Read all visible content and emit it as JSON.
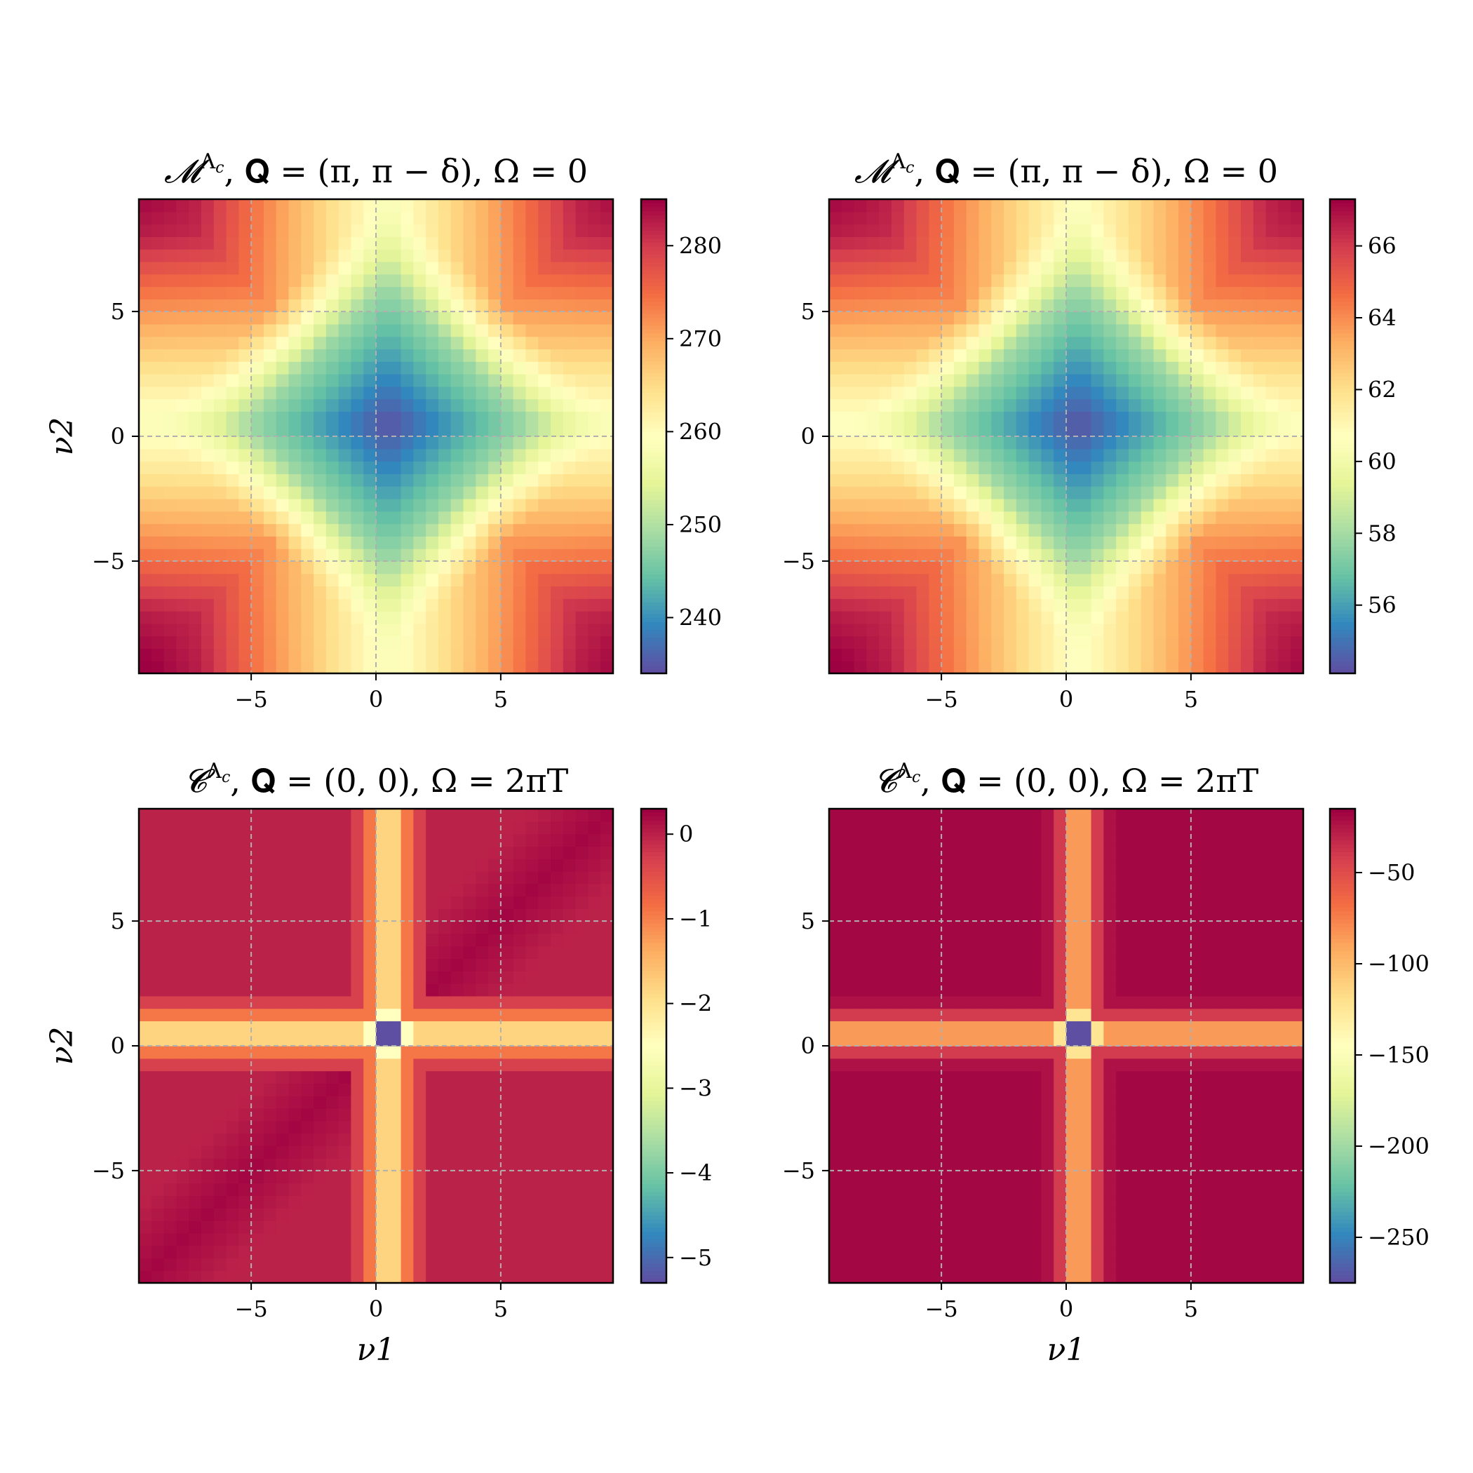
{
  "figure": {
    "colormap": "Spectral",
    "colormap_stops": [
      "#9e0142",
      "#d53e4f",
      "#f46d43",
      "#fdae61",
      "#fee08b",
      "#ffffbf",
      "#e6f598",
      "#abdda4",
      "#66c2a5",
      "#3288bd",
      "#5e4fa2"
    ]
  },
  "chart_data": [
    {
      "type": "heatmap",
      "title": "𝓜^Λc, 𝐐 = (π, π − δ), Ω = 0",
      "title_parts": {
        "sym": "𝓜",
        "sup": "Λ",
        "sub": "c",
        "rest": ", 𝐐 = (π, π − δ), Ω = 0"
      },
      "xlabel": "",
      "ylabel": "ν2",
      "xlim": [
        -9.5,
        9.5
      ],
      "ylim": [
        -9.5,
        9.5
      ],
      "xticks": [
        -5,
        0,
        5
      ],
      "yticks": [
        -5,
        0,
        5
      ],
      "xtick_labels": [
        "−5",
        "0",
        "5"
      ],
      "ytick_labels": [
        "−5",
        "0",
        "5"
      ],
      "grid": true,
      "grid_style": "dashed",
      "colorbar": {
        "min": 234,
        "max": 285,
        "ticks": [
          240,
          250,
          260,
          270,
          280
        ],
        "tick_labels": [
          "240",
          "250",
          "260",
          "270",
          "280"
        ]
      },
      "pattern": "cross",
      "center": [
        0.5,
        0.5
      ],
      "values": {
        "center": 234,
        "band_min": 258,
        "edge": 278,
        "corner": 285
      }
    },
    {
      "type": "heatmap",
      "title": "𝓜^Λc, 𝐐 = (π, π − δ), Ω = 0",
      "title_parts": {
        "sym": "𝓜",
        "sup": "Λ",
        "sub": "c",
        "rest": ", 𝐐 = (π, π − δ), Ω = 0"
      },
      "xlabel": "",
      "ylabel": "",
      "xlim": [
        -9.5,
        9.5
      ],
      "ylim": [
        -9.5,
        9.5
      ],
      "xticks": [
        -5,
        0,
        5
      ],
      "yticks": [
        -5,
        0,
        5
      ],
      "xtick_labels": [
        "−5",
        "0",
        "5"
      ],
      "ytick_labels": [
        "−5",
        "0",
        "5"
      ],
      "grid": true,
      "grid_style": "dashed",
      "colorbar": {
        "min": 54.1,
        "max": 67.3,
        "ticks": [
          56,
          58,
          60,
          62,
          64,
          66
        ],
        "tick_labels": [
          "56",
          "58",
          "60",
          "62",
          "64",
          "66"
        ]
      },
      "pattern": "cross",
      "center": [
        0.5,
        0.5
      ],
      "values": {
        "center": 54.1,
        "band_min": 60.5,
        "edge": 65.5,
        "corner": 67.3
      }
    },
    {
      "type": "heatmap",
      "title": "𝓒^Λc, 𝐐 = (0, 0), Ω = 2πT",
      "title_parts": {
        "sym": "𝓒",
        "sup": "Λ",
        "sub": "c",
        "rest": ", 𝐐 = (0, 0), Ω = 2πT"
      },
      "xlabel": "ν1",
      "ylabel": "ν2",
      "xlim": [
        -9.5,
        9.5
      ],
      "ylim": [
        -9.5,
        9.5
      ],
      "xticks": [
        -5,
        0,
        5
      ],
      "yticks": [
        -5,
        0,
        5
      ],
      "xtick_labels": [
        "−5",
        "0",
        "5"
      ],
      "ytick_labels": [
        "−5",
        "0",
        "5"
      ],
      "grid": true,
      "grid_style": "dashed",
      "colorbar": {
        "min": -5.3,
        "max": 0.3,
        "ticks": [
          -5,
          -4,
          -3,
          -2,
          -1,
          0
        ],
        "tick_labels": [
          "−5",
          "−4",
          "−3",
          "−2",
          "−1",
          "0"
        ]
      },
      "pattern": "lines",
      "line_pos": 0.5,
      "values": {
        "background": 0.0,
        "line_center": -1.8,
        "line_near": -0.9,
        "line_far": -0.3,
        "spot": -5.3,
        "diag_dip": 0.25
      }
    },
    {
      "type": "heatmap",
      "title": "𝓒^Λc, 𝐐 = (0, 0), Ω = 2πT",
      "title_parts": {
        "sym": "𝓒",
        "sup": "Λ",
        "sub": "c",
        "rest": ", 𝐐 = (0, 0), Ω = 2πT"
      },
      "xlabel": "ν1",
      "ylabel": "",
      "xlim": [
        -9.5,
        9.5
      ],
      "ylim": [
        -9.5,
        9.5
      ],
      "xticks": [
        -5,
        0,
        5
      ],
      "yticks": [
        -5,
        0,
        5
      ],
      "xtick_labels": [
        "−5",
        "0",
        "5"
      ],
      "ytick_labels": [
        "−5",
        "0",
        "5"
      ],
      "grid": true,
      "grid_style": "dashed",
      "colorbar": {
        "min": -275,
        "max": -15,
        "ticks": [
          -250,
          -200,
          -150,
          -100,
          -50
        ],
        "tick_labels": [
          "−250",
          "−200",
          "−150",
          "−100",
          "−50"
        ]
      },
      "pattern": "lines",
      "line_pos": 0.5,
      "values": {
        "background": -18,
        "line_center": -85,
        "line_near": -40,
        "line_far": -22,
        "spot": -275,
        "diag_dip": 0
      }
    }
  ]
}
